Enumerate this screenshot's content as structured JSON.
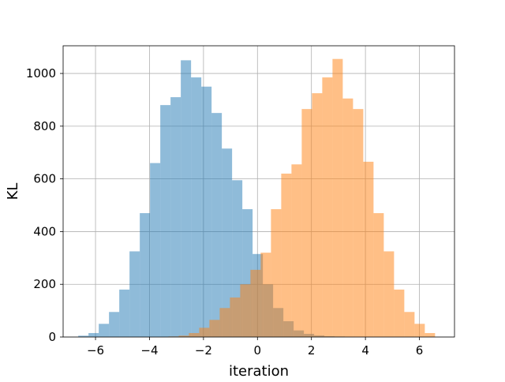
{
  "chart_data": {
    "type": "histogram",
    "title": "",
    "xlabel": "iteration",
    "ylabel": "KL",
    "xlim": [
      -7.2,
      7.3
    ],
    "ylim": [
      0,
      1105
    ],
    "xticks": [
      -6,
      -4,
      -2,
      0,
      2,
      4,
      6
    ],
    "xtick_labels": [
      "−6",
      "−4",
      "−2",
      "0",
      "2",
      "4",
      "6"
    ],
    "yticks": [
      0,
      200,
      400,
      600,
      800,
      1000
    ],
    "ytick_labels": [
      "0",
      "200",
      "400",
      "600",
      "800",
      "1000"
    ],
    "grid": true,
    "legend": "none",
    "colors": [
      "#1f77b4",
      "#ff7f0e"
    ],
    "alpha": 0.5,
    "series": [
      {
        "color": "#1f77b4",
        "bin_edges": [
          -6.64,
          -6.26,
          -5.88,
          -5.5,
          -5.12,
          -4.74,
          -4.36,
          -3.98,
          -3.6,
          -3.22,
          -2.84,
          -2.46,
          -2.08,
          -1.7,
          -1.32,
          -0.94,
          -0.56,
          -0.18,
          0.2,
          0.58,
          0.96,
          1.34,
          1.72,
          2.1,
          2.48,
          2.86,
          3.24,
          3.62
        ],
        "counts": [
          5,
          15,
          50,
          95,
          180,
          325,
          470,
          660,
          880,
          910,
          1050,
          985,
          950,
          850,
          715,
          595,
          485,
          315,
          200,
          110,
          60,
          25,
          12,
          6,
          3,
          2,
          1
        ]
      },
      {
        "color": "#ff7f0e",
        "bin_edges": [
          -3.3,
          -2.92,
          -2.54,
          -2.16,
          -1.78,
          -1.4,
          -1.02,
          -0.64,
          -0.26,
          0.12,
          0.5,
          0.88,
          1.26,
          1.64,
          2.02,
          2.4,
          2.78,
          3.16,
          3.54,
          3.92,
          4.3,
          4.68,
          5.06,
          5.44,
          5.82,
          6.2,
          6.58
        ],
        "counts": [
          2,
          5,
          15,
          35,
          65,
          110,
          150,
          200,
          255,
          320,
          485,
          620,
          655,
          865,
          925,
          985,
          1055,
          905,
          865,
          665,
          470,
          325,
          180,
          95,
          50,
          15
        ]
      }
    ]
  }
}
